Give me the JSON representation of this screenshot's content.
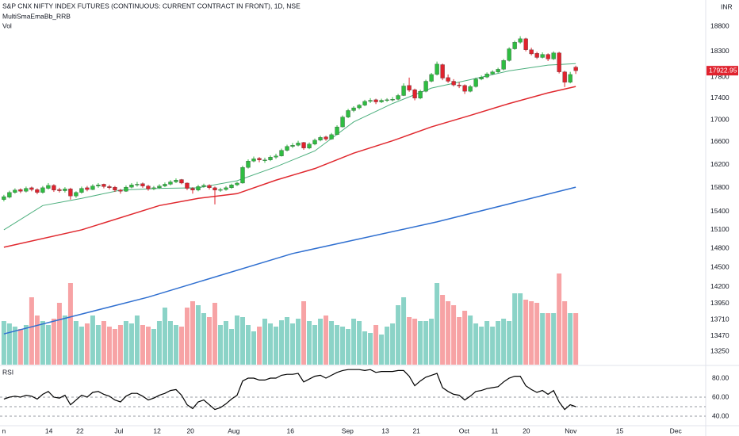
{
  "chart_data": {
    "type": "candlestick",
    "title": "S&P CNX NIFTY INDEX FUTURES (CONTINUOUS: CURRENT CONTRACT IN FRONT), 1D, NSE",
    "indicator": "MultiSmaEmaBb_RRB",
    "currency": "INR",
    "log_scale": true,
    "ylim": [
      13060,
      19340
    ],
    "yticks": [
      18800,
      18300,
      17800,
      17400,
      17000,
      16600,
      16200,
      15800,
      15400,
      15100,
      14800,
      14500,
      14200,
      13950,
      13710,
      13470,
      13250
    ],
    "xlim": [
      -0.7,
      126.4
    ],
    "xticks": [
      {
        "value": 0,
        "label": "n"
      },
      {
        "value": 8.1,
        "label": "14"
      },
      {
        "value": 13.7,
        "label": "22"
      },
      {
        "value": 20.7,
        "label": "Jul"
      },
      {
        "value": 27.6,
        "label": "12"
      },
      {
        "value": 33.6,
        "label": "20"
      },
      {
        "value": 41.4,
        "label": "Aug"
      },
      {
        "value": 51.6,
        "label": "16"
      },
      {
        "value": 61.9,
        "label": "Sep"
      },
      {
        "value": 68.7,
        "label": "13"
      },
      {
        "value": 74.3,
        "label": "21"
      },
      {
        "value": 82.9,
        "label": "Oct"
      },
      {
        "value": 88.4,
        "label": "11"
      },
      {
        "value": 94.1,
        "label": "20"
      },
      {
        "value": 102.1,
        "label": "Nov"
      },
      {
        "value": 110.9,
        "label": "15"
      },
      {
        "value": 121,
        "label": "Dec"
      }
    ],
    "up_color": "#2ebd41",
    "down_color": "#e0232e",
    "ohlc": [
      [
        15600,
        15680,
        15570,
        15650
      ],
      [
        15640,
        15750,
        15620,
        15720
      ],
      [
        15720,
        15790,
        15700,
        15760
      ],
      [
        15770,
        15790,
        15710,
        15740
      ],
      [
        15740,
        15820,
        15720,
        15790
      ],
      [
        15800,
        15820,
        15740,
        15770
      ],
      [
        15770,
        15790,
        15690,
        15720
      ],
      [
        15720,
        15830,
        15700,
        15800
      ],
      [
        15790,
        15880,
        15770,
        15840
      ],
      [
        15840,
        15860,
        15730,
        15760
      ],
      [
        15770,
        15800,
        15720,
        15750
      ],
      [
        15750,
        15810,
        15720,
        15780
      ],
      [
        15780,
        15800,
        15600,
        15660
      ],
      [
        15660,
        15740,
        15630,
        15720
      ],
      [
        15720,
        15820,
        15700,
        15790
      ],
      [
        15800,
        15830,
        15740,
        15770
      ],
      [
        15770,
        15860,
        15760,
        15830
      ],
      [
        15830,
        15880,
        15800,
        15850
      ],
      [
        15860,
        15870,
        15790,
        15820
      ],
      [
        15820,
        15850,
        15770,
        15800
      ],
      [
        15810,
        15830,
        15730,
        15760
      ],
      [
        15760,
        15780,
        15700,
        15740
      ],
      [
        15740,
        15840,
        15730,
        15810
      ],
      [
        15810,
        15880,
        15790,
        15850
      ],
      [
        15850,
        15900,
        15820,
        15860
      ],
      [
        15870,
        15890,
        15800,
        15830
      ],
      [
        15830,
        15850,
        15750,
        15780
      ],
      [
        15780,
        15830,
        15760,
        15800
      ],
      [
        15800,
        15860,
        15780,
        15830
      ],
      [
        15830,
        15890,
        15810,
        15860
      ],
      [
        15860,
        15930,
        15840,
        15900
      ],
      [
        15900,
        15960,
        15880,
        15930
      ],
      [
        15940,
        15950,
        15860,
        15880
      ],
      [
        15880,
        15890,
        15760,
        15790
      ],
      [
        15790,
        15810,
        15700,
        15760
      ],
      [
        15760,
        15850,
        15740,
        15820
      ],
      [
        15820,
        15870,
        15800,
        15840
      ],
      [
        15840,
        15860,
        15770,
        15800
      ],
      [
        15800,
        15820,
        15520,
        15760
      ],
      [
        15760,
        15800,
        15730,
        15770
      ],
      [
        15770,
        15830,
        15750,
        15800
      ],
      [
        15800,
        15870,
        15780,
        15850
      ],
      [
        15850,
        15900,
        15830,
        15880
      ],
      [
        15880,
        16180,
        15870,
        16150
      ],
      [
        16150,
        16290,
        16130,
        16260
      ],
      [
        16260,
        16340,
        16240,
        16300
      ],
      [
        16310,
        16330,
        16240,
        16280
      ],
      [
        16270,
        16320,
        16230,
        16280
      ],
      [
        16280,
        16360,
        16260,
        16330
      ],
      [
        16330,
        16390,
        16300,
        16350
      ],
      [
        16350,
        16480,
        16340,
        16450
      ],
      [
        16450,
        16550,
        16430,
        16520
      ],
      [
        16520,
        16580,
        16490,
        16540
      ],
      [
        16540,
        16620,
        16520,
        16580
      ],
      [
        16590,
        16600,
        16460,
        16490
      ],
      [
        16490,
        16590,
        16470,
        16560
      ],
      [
        16560,
        16660,
        16540,
        16630
      ],
      [
        16630,
        16710,
        16610,
        16680
      ],
      [
        16690,
        16710,
        16620,
        16650
      ],
      [
        16650,
        16760,
        16640,
        16730
      ],
      [
        16730,
        16900,
        16720,
        16870
      ],
      [
        16870,
        17080,
        16860,
        17050
      ],
      [
        17050,
        17200,
        17030,
        17170
      ],
      [
        17170,
        17250,
        17140,
        17220
      ],
      [
        17220,
        17290,
        17190,
        17270
      ],
      [
        17270,
        17370,
        17250,
        17340
      ],
      [
        17340,
        17400,
        17310,
        17360
      ],
      [
        17370,
        17390,
        17290,
        17330
      ],
      [
        17330,
        17390,
        17310,
        17360
      ],
      [
        17360,
        17400,
        17330,
        17370
      ],
      [
        17370,
        17420,
        17340,
        17380
      ],
      [
        17380,
        17480,
        17360,
        17450
      ],
      [
        17450,
        17680,
        17440,
        17630
      ],
      [
        17640,
        17790,
        17520,
        17550
      ],
      [
        17560,
        17580,
        17360,
        17400
      ],
      [
        17400,
        17560,
        17380,
        17530
      ],
      [
        17530,
        17750,
        17510,
        17720
      ],
      [
        17720,
        17880,
        17700,
        17850
      ],
      [
        17850,
        18100,
        17830,
        18050
      ],
      [
        18040,
        18060,
        17740,
        17780
      ],
      [
        17790,
        17850,
        17690,
        17720
      ],
      [
        17720,
        17760,
        17620,
        17650
      ],
      [
        17650,
        17700,
        17590,
        17630
      ],
      [
        17640,
        17660,
        17480,
        17530
      ],
      [
        17530,
        17650,
        17510,
        17620
      ],
      [
        17620,
        17790,
        17600,
        17760
      ],
      [
        17760,
        17830,
        17740,
        17800
      ],
      [
        17800,
        17890,
        17780,
        17860
      ],
      [
        17860,
        17930,
        17840,
        17900
      ],
      [
        17900,
        17980,
        17880,
        17950
      ],
      [
        17950,
        18150,
        17930,
        18120
      ],
      [
        18120,
        18380,
        18100,
        18350
      ],
      [
        18350,
        18510,
        18330,
        18480
      ],
      [
        18480,
        18600,
        18450,
        18550
      ],
      [
        18550,
        18570,
        18300,
        18330
      ],
      [
        18330,
        18370,
        18220,
        18250
      ],
      [
        18260,
        18290,
        18150,
        18180
      ],
      [
        18180,
        18280,
        18160,
        18240
      ],
      [
        18240,
        18260,
        18110,
        18150
      ],
      [
        18150,
        18300,
        18130,
        18270
      ],
      [
        18270,
        18290,
        17870,
        17900
      ],
      [
        17900,
        17920,
        17610,
        17700
      ],
      [
        17700,
        17900,
        17680,
        17850
      ],
      [
        17990,
        18020,
        17860,
        17922.95
      ]
    ],
    "last_price": 17922.95,
    "lines": [
      {
        "color": "#2f6fd0",
        "x": [
          0,
          26,
          52,
          78,
          103
        ],
        "values": [
          13500,
          14045,
          14720,
          15230,
          15810
        ]
      },
      {
        "color": "#e0282e",
        "x": [
          0,
          14,
          28,
          35,
          42,
          49,
          56,
          63,
          70,
          77,
          84,
          91,
          98,
          103
        ],
        "values": [
          14820,
          15100,
          15500,
          15620,
          15700,
          15930,
          16130,
          16400,
          16620,
          16870,
          17080,
          17300,
          17500,
          17620
        ]
      },
      {
        "color": "#4caf7d",
        "x": [
          0,
          7,
          14,
          21,
          28,
          35,
          42,
          49,
          56,
          63,
          70,
          77,
          84,
          91,
          98,
          103
        ],
        "values": [
          15100,
          15500,
          15620,
          15760,
          15790,
          15800,
          15920,
          16160,
          16440,
          16960,
          17300,
          17590,
          17750,
          17920,
          18030,
          18060
        ]
      }
    ],
    "volume": {
      "name": "Vol",
      "ylim": [
        0,
        120
      ],
      "up_color": "#8bd3c7",
      "down_color": "#f7a3a5",
      "values": [
        55,
        52,
        48,
        45,
        50,
        85,
        62,
        55,
        50,
        58,
        78,
        62,
        103,
        55,
        48,
        52,
        62,
        50,
        55,
        48,
        45,
        50,
        55,
        52,
        62,
        50,
        48,
        45,
        55,
        72,
        55,
        50,
        48,
        72,
        80,
        75,
        65,
        60,
        78,
        50,
        55,
        45,
        62,
        60,
        50,
        42,
        48,
        58,
        52,
        48,
        56,
        60,
        52,
        58,
        80,
        55,
        50,
        58,
        62,
        55,
        50,
        48,
        45,
        58,
        55,
        42,
        40,
        50,
        38,
        48,
        52,
        75,
        85,
        60,
        58,
        55,
        55,
        58,
        103,
        88,
        80,
        75,
        60,
        68,
        62,
        52,
        48,
        55,
        48,
        55,
        58,
        55,
        90,
        90,
        82,
        80,
        78,
        65,
        65,
        65,
        115,
        80,
        65,
        65
      ]
    },
    "rsi": {
      "name": "RSI",
      "color": "#000000",
      "ylim": [
        30,
        90
      ],
      "yticks": [
        {
          "value": 80,
          "label": "80.00"
        },
        {
          "value": 60,
          "label": "60.00"
        },
        {
          "value": 40,
          "label": "40.00"
        }
      ],
      "levels": [
        60,
        50,
        40
      ],
      "values": [
        58,
        60,
        61,
        60,
        62,
        61,
        58,
        63,
        66,
        60,
        59,
        62,
        52,
        57,
        62,
        60,
        65,
        66,
        63,
        61,
        57,
        55,
        61,
        64,
        64,
        61,
        57,
        59,
        62,
        64,
        67,
        68,
        62,
        52,
        48,
        55,
        57,
        52,
        47,
        49,
        53,
        58,
        62,
        77,
        80,
        80,
        78,
        78,
        80,
        80,
        83,
        84,
        84,
        85,
        76,
        79,
        82,
        83,
        80,
        83,
        86,
        88,
        89,
        89,
        89,
        88,
        89,
        86,
        87,
        87,
        87,
        88,
        88,
        82,
        72,
        77,
        81,
        83,
        85,
        70,
        66,
        63,
        62,
        57,
        61,
        66,
        67,
        69,
        70,
        71,
        76,
        80,
        82,
        82,
        72,
        68,
        65,
        67,
        63,
        67,
        55,
        47,
        52,
        50
      ]
    }
  }
}
